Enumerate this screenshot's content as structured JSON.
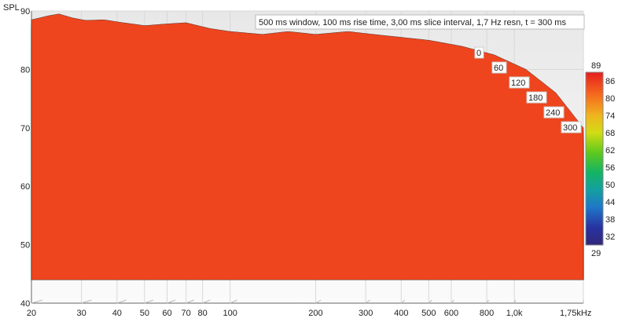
{
  "chart_data": {
    "type": "waterfall",
    "ylabel": "SPL",
    "info": "500 ms window, 100 ms rise time, 3,00 ms slice interval, 1,7 Hz resn, t = 300 ms",
    "x_unit": "kHz",
    "x_ticks": [
      {
        "value": 20,
        "label": "20"
      },
      {
        "value": 30,
        "label": "30"
      },
      {
        "value": 40,
        "label": "40"
      },
      {
        "value": 50,
        "label": "50"
      },
      {
        "value": 60,
        "label": "60"
      },
      {
        "value": 70,
        "label": "70"
      },
      {
        "value": 80,
        "label": "80"
      },
      {
        "value": 100,
        "label": "100"
      },
      {
        "value": 200,
        "label": "200"
      },
      {
        "value": 300,
        "label": "300"
      },
      {
        "value": 400,
        "label": "400"
      },
      {
        "value": 500,
        "label": "500"
      },
      {
        "value": 600,
        "label": "600"
      },
      {
        "value": 800,
        "label": "800"
      },
      {
        "value": 1000,
        "label": "1,0k"
      },
      {
        "value": 1750,
        "label": "1,75kHz"
      }
    ],
    "xlim": [
      20,
      1750
    ],
    "x_scale": "log",
    "ylim": [
      40,
      90
    ],
    "y_ticks": [
      40,
      50,
      60,
      70,
      80,
      90
    ],
    "time_ticks": [
      "0",
      "60",
      "120",
      "180",
      "240",
      "300"
    ],
    "time_range_ms": [
      0,
      300
    ],
    "slice_interval_ms": 3,
    "colorbar": {
      "top_label": "89",
      "bottom_label": "29",
      "ticks": [
        "86",
        "80",
        "74",
        "68",
        "62",
        "56",
        "50",
        "44",
        "38",
        "32"
      ],
      "range": [
        29,
        89
      ]
    },
    "first_slice_peaks": [
      {
        "freq": 20,
        "spl": 88.5
      },
      {
        "freq": 23,
        "spl": 89.2
      },
      {
        "freq": 25,
        "spl": 89.5
      },
      {
        "freq": 28,
        "spl": 88.8
      },
      {
        "freq": 31,
        "spl": 88.4
      },
      {
        "freq": 36,
        "spl": 88.5
      },
      {
        "freq": 42,
        "spl": 88.0
      },
      {
        "freq": 50,
        "spl": 87.5
      },
      {
        "freq": 60,
        "spl": 87.8
      },
      {
        "freq": 70,
        "spl": 88.0
      },
      {
        "freq": 85,
        "spl": 87.0
      },
      {
        "freq": 100,
        "spl": 86.5
      },
      {
        "freq": 130,
        "spl": 86.0
      },
      {
        "freq": 160,
        "spl": 86.5
      },
      {
        "freq": 200,
        "spl": 86.0
      },
      {
        "freq": 260,
        "spl": 86.5
      },
      {
        "freq": 320,
        "spl": 86.0
      },
      {
        "freq": 400,
        "spl": 85.5
      },
      {
        "freq": 500,
        "spl": 85.0
      },
      {
        "freq": 650,
        "spl": 84.0
      },
      {
        "freq": 850,
        "spl": 82.5
      },
      {
        "freq": 1100,
        "spl": 80.0
      },
      {
        "freq": 1400,
        "spl": 76.0
      },
      {
        "freq": 1750,
        "spl": 70.0
      }
    ],
    "floor_spl": 44
  }
}
